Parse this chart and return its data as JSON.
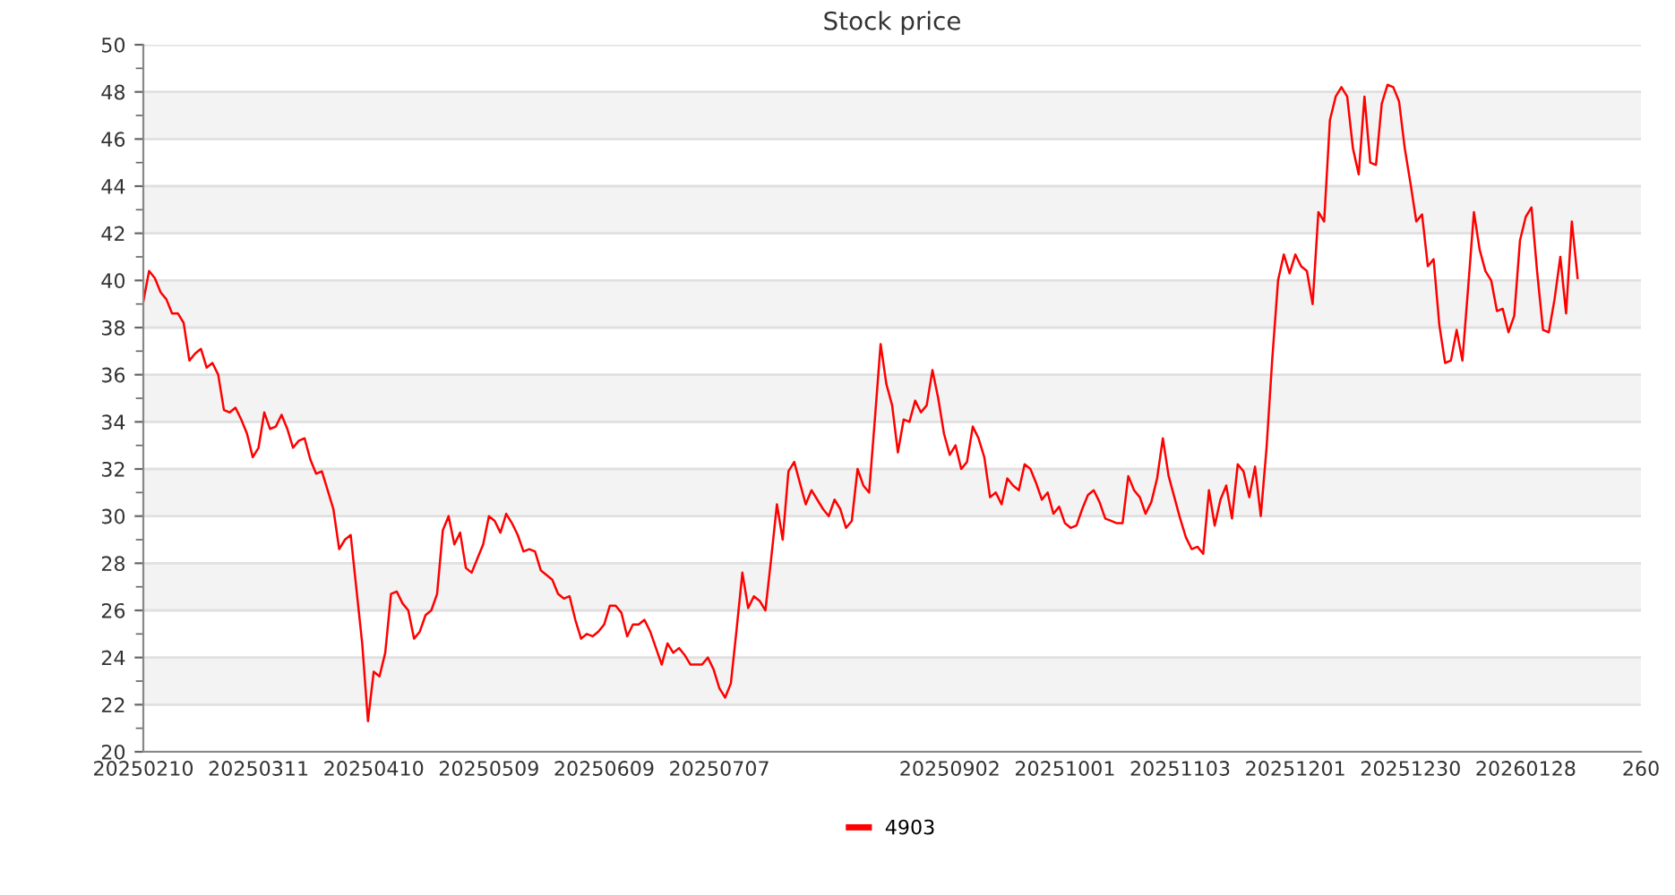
{
  "chart_data": {
    "type": "line",
    "title": "Stock price",
    "categories": [
      "20250210",
      null,
      null,
      null,
      null,
      null,
      null,
      null,
      null,
      null,
      null,
      null,
      null,
      null,
      null,
      null,
      null,
      null,
      null,
      null,
      "20250311",
      null,
      null,
      null,
      null,
      null,
      null,
      null,
      null,
      null,
      null,
      null,
      null,
      null,
      null,
      null,
      null,
      null,
      null,
      null,
      "20250410",
      null,
      null,
      null,
      null,
      null,
      null,
      null,
      null,
      null,
      null,
      null,
      null,
      null,
      null,
      null,
      null,
      null,
      null,
      null,
      "20250509",
      null,
      null,
      null,
      null,
      null,
      null,
      null,
      null,
      null,
      null,
      null,
      null,
      null,
      null,
      null,
      null,
      null,
      null,
      null,
      "20250609",
      null,
      null,
      null,
      null,
      null,
      null,
      null,
      null,
      null,
      null,
      null,
      null,
      null,
      null,
      null,
      null,
      null,
      null,
      null,
      "20250707",
      null,
      null,
      null,
      null,
      null,
      null,
      null,
      null,
      null,
      null,
      null,
      null,
      null,
      null,
      null,
      null,
      null,
      null,
      null,
      null,
      null,
      null,
      null,
      null,
      null,
      null,
      null,
      null,
      null,
      null,
      null,
      null,
      null,
      null,
      null,
      null,
      null,
      null,
      null,
      "20250902",
      null,
      null,
      null,
      null,
      null,
      null,
      null,
      null,
      null,
      null,
      null,
      null,
      null,
      null,
      null,
      null,
      null,
      null,
      null,
      "20251001",
      null,
      null,
      null,
      null,
      null,
      null,
      null,
      null,
      null,
      null,
      null,
      null,
      null,
      null,
      null,
      null,
      null,
      null,
      null,
      "20251103",
      null,
      null,
      null,
      null,
      null,
      null,
      null,
      null,
      null,
      null,
      null,
      null,
      null,
      null,
      null,
      null,
      null,
      null,
      null,
      "20251201",
      null,
      null,
      null,
      null,
      null,
      null,
      null,
      null,
      null,
      null,
      null,
      null,
      null,
      null,
      null,
      null,
      null,
      null,
      null,
      "20251230",
      null,
      null,
      null,
      null,
      null,
      null,
      null,
      null,
      null,
      null,
      null,
      null,
      null,
      null,
      null,
      null,
      null,
      null,
      null,
      "20260128",
      null,
      null,
      null,
      null,
      null,
      null,
      null,
      null,
      null,
      null,
      null,
      null,
      null,
      null,
      null,
      null,
      null,
      null,
      null,
      "260"
    ],
    "series": [
      {
        "name": "4903",
        "color": "#ff0000",
        "values": [
          39.1,
          40.4,
          40.1,
          39.5,
          39.2,
          38.6,
          38.6,
          38.2,
          36.6,
          36.9,
          37.1,
          36.3,
          36.5,
          36.0,
          34.5,
          34.4,
          34.6,
          34.1,
          33.5,
          32.5,
          32.9,
          34.4,
          33.7,
          33.8,
          34.3,
          33.7,
          32.9,
          33.2,
          33.3,
          32.4,
          31.8,
          31.9,
          31.1,
          30.3,
          28.6,
          29.0,
          29.2,
          26.9,
          24.6,
          21.3,
          23.4,
          23.2,
          24.2,
          26.7,
          26.8,
          26.3,
          26.0,
          24.8,
          25.1,
          25.8,
          26.0,
          26.7,
          29.4,
          30.0,
          28.8,
          29.3,
          27.8,
          27.6,
          28.2,
          28.8,
          30.0,
          29.8,
          29.3,
          30.1,
          29.7,
          29.2,
          28.5,
          28.6,
          28.5,
          27.7,
          27.5,
          27.3,
          26.7,
          26.5,
          26.6,
          25.6,
          24.8,
          25.0,
          24.9,
          25.1,
          25.4,
          26.2,
          26.2,
          25.9,
          24.9,
          25.4,
          25.4,
          25.6,
          25.1,
          24.4,
          23.7,
          24.6,
          24.2,
          24.4,
          24.1,
          23.7,
          23.7,
          23.7,
          24.0,
          23.5,
          22.7,
          22.3,
          22.9,
          25.2,
          27.6,
          26.1,
          26.6,
          26.4,
          26.0,
          28.2,
          30.5,
          29.0,
          31.9,
          32.3,
          31.4,
          30.5,
          31.1,
          30.7,
          30.3,
          30.0,
          30.7,
          30.3,
          29.5,
          29.8,
          32.0,
          31.3,
          31.0,
          34.1,
          37.3,
          35.6,
          34.7,
          32.7,
          34.1,
          34.0,
          34.9,
          34.4,
          34.7,
          36.2,
          35.0,
          33.5,
          32.6,
          33.0,
          32.0,
          32.3,
          33.8,
          33.3,
          32.5,
          30.8,
          31.0,
          30.5,
          31.6,
          31.3,
          31.1,
          32.2,
          32.0,
          31.4,
          30.7,
          31.0,
          30.1,
          30.4,
          29.7,
          29.5,
          29.6,
          30.3,
          30.9,
          31.1,
          30.6,
          29.9,
          29.8,
          29.7,
          29.7,
          31.7,
          31.1,
          30.8,
          30.1,
          30.6,
          31.6,
          33.3,
          31.7,
          30.8,
          29.9,
          29.1,
          28.6,
          28.7,
          28.4,
          31.1,
          29.6,
          30.7,
          31.3,
          29.9,
          32.2,
          31.9,
          30.8,
          32.1,
          30.0,
          32.9,
          36.7,
          40.0,
          41.1,
          40.3,
          41.1,
          40.6,
          40.4,
          39.0,
          42.9,
          42.5,
          46.8,
          47.8,
          48.2,
          47.8,
          45.6,
          44.5,
          47.8,
          45.0,
          44.9,
          47.5,
          48.3,
          48.2,
          47.6,
          45.6,
          44.1,
          42.5,
          42.8,
          40.6,
          40.9,
          38.1,
          36.5,
          36.6,
          37.9,
          36.6,
          39.7,
          42.9,
          41.3,
          40.4,
          40.0,
          38.7,
          38.8,
          37.8,
          38.5,
          41.7,
          42.7,
          43.1,
          40.3,
          37.9,
          37.8,
          39.2,
          41.0,
          38.6,
          42.5,
          40.1,
          null,
          null,
          null,
          null,
          null,
          null,
          null,
          null,
          null,
          null,
          null
        ]
      }
    ],
    "ylim": [
      20,
      50
    ],
    "yticks": [
      20,
      22,
      24,
      26,
      28,
      30,
      32,
      34,
      36,
      38,
      40,
      42,
      44,
      46,
      48,
      50
    ],
    "grid": "y",
    "legend": "bottom",
    "marker": "none",
    "line_style": "solid"
  }
}
